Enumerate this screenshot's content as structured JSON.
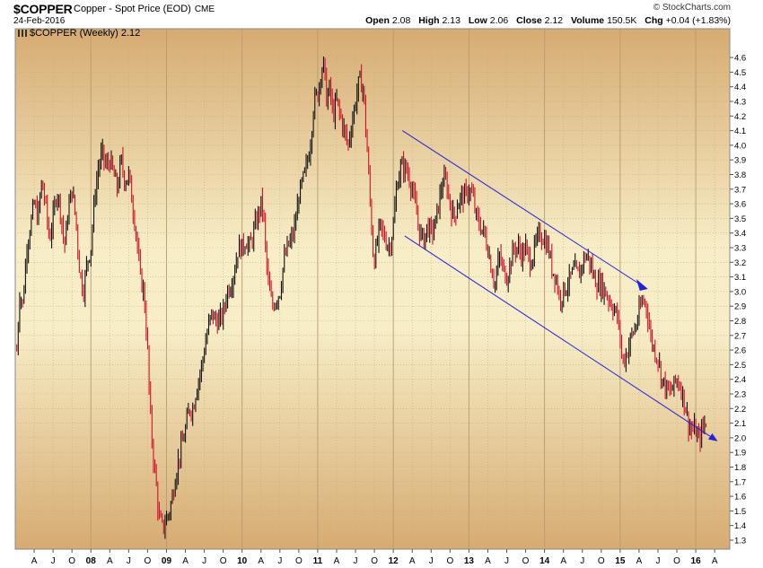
{
  "header": {
    "symbol": "$COPPER",
    "description": "Copper - Spot Price (EOD)",
    "exchange": "CME",
    "date": "24-Feb-2016",
    "brand": "© StockCharts.com",
    "quote": {
      "open_label": "Open",
      "open": "2.08",
      "high_label": "High",
      "high": "2.13",
      "low_label": "Low",
      "low": "2.06",
      "close_label": "Close",
      "close": "2.12",
      "volume_label": "Volume",
      "volume": "150.5K",
      "chg_label": "Chg",
      "chg": "+0.04 (+1.83%)"
    }
  },
  "legend": {
    "label": "$COPPER (Weekly) 2.12"
  },
  "chart_data": {
    "type": "line",
    "title": "$COPPER",
    "ylim": [
      1.2,
      4.7
    ],
    "y_ticks": [
      1.3,
      1.4,
      1.5,
      1.6,
      1.7,
      1.8,
      1.9,
      2.0,
      2.1,
      2.2,
      2.3,
      2.4,
      2.5,
      2.6,
      2.7,
      2.8,
      2.9,
      3.0,
      3.1,
      3.2,
      3.3,
      3.4,
      3.5,
      3.6,
      3.7,
      3.8,
      3.9,
      4.0,
      4.1,
      4.2,
      4.3,
      4.4,
      4.5,
      4.6
    ],
    "x_ticks": [
      {
        "t": 2007.25,
        "label": "A"
      },
      {
        "t": 2007.5,
        "label": "J"
      },
      {
        "t": 2007.75,
        "label": "O"
      },
      {
        "t": 2008.0,
        "label": "08",
        "major": true
      },
      {
        "t": 2008.25,
        "label": "A"
      },
      {
        "t": 2008.5,
        "label": "J"
      },
      {
        "t": 2008.75,
        "label": "O"
      },
      {
        "t": 2009.0,
        "label": "09",
        "major": true
      },
      {
        "t": 2009.25,
        "label": "A"
      },
      {
        "t": 2009.5,
        "label": "J"
      },
      {
        "t": 2009.75,
        "label": "O"
      },
      {
        "t": 2010.0,
        "label": "10",
        "major": true
      },
      {
        "t": 2010.25,
        "label": "A"
      },
      {
        "t": 2010.5,
        "label": "J"
      },
      {
        "t": 2010.75,
        "label": "O"
      },
      {
        "t": 2011.0,
        "label": "11",
        "major": true
      },
      {
        "t": 2011.25,
        "label": "A"
      },
      {
        "t": 2011.5,
        "label": "J"
      },
      {
        "t": 2011.75,
        "label": "O"
      },
      {
        "t": 2012.0,
        "label": "12",
        "major": true
      },
      {
        "t": 2012.25,
        "label": "A"
      },
      {
        "t": 2012.5,
        "label": "J"
      },
      {
        "t": 2012.75,
        "label": "O"
      },
      {
        "t": 2013.0,
        "label": "13",
        "major": true
      },
      {
        "t": 2013.25,
        "label": "A"
      },
      {
        "t": 2013.5,
        "label": "J"
      },
      {
        "t": 2013.75,
        "label": "O"
      },
      {
        "t": 2014.0,
        "label": "14",
        "major": true
      },
      {
        "t": 2014.25,
        "label": "A"
      },
      {
        "t": 2014.5,
        "label": "J"
      },
      {
        "t": 2014.75,
        "label": "O"
      },
      {
        "t": 2015.0,
        "label": "15",
        "major": true
      },
      {
        "t": 2015.25,
        "label": "A"
      },
      {
        "t": 2015.5,
        "label": "J"
      },
      {
        "t": 2015.75,
        "label": "O"
      },
      {
        "t": 2016.0,
        "label": "16",
        "major": true
      },
      {
        "t": 2016.25,
        "label": "A"
      }
    ],
    "series": [
      {
        "values": [
          [
            2007.02,
            2.6
          ],
          [
            2007.06,
            3.0
          ],
          [
            2007.1,
            2.9
          ],
          [
            2007.15,
            3.3
          ],
          [
            2007.2,
            3.45
          ],
          [
            2007.25,
            3.6
          ],
          [
            2007.3,
            3.5
          ],
          [
            2007.35,
            3.75
          ],
          [
            2007.4,
            3.6
          ],
          [
            2007.45,
            3.35
          ],
          [
            2007.5,
            3.5
          ],
          [
            2007.55,
            3.7
          ],
          [
            2007.6,
            3.55
          ],
          [
            2007.65,
            3.3
          ],
          [
            2007.7,
            3.55
          ],
          [
            2007.75,
            3.7
          ],
          [
            2007.8,
            3.5
          ],
          [
            2007.85,
            3.15
          ],
          [
            2007.9,
            3.0
          ],
          [
            2007.95,
            3.2
          ],
          [
            2008.0,
            3.3
          ],
          [
            2008.05,
            3.65
          ],
          [
            2008.1,
            3.85
          ],
          [
            2008.15,
            3.95
          ],
          [
            2008.2,
            3.85
          ],
          [
            2008.25,
            3.9
          ],
          [
            2008.3,
            3.8
          ],
          [
            2008.35,
            3.7
          ],
          [
            2008.4,
            3.9
          ],
          [
            2008.45,
            3.75
          ],
          [
            2008.5,
            3.8
          ],
          [
            2008.55,
            3.6
          ],
          [
            2008.6,
            3.4
          ],
          [
            2008.65,
            3.1
          ],
          [
            2008.7,
            3.0
          ],
          [
            2008.75,
            2.6
          ],
          [
            2008.78,
            2.2
          ],
          [
            2008.82,
            1.9
          ],
          [
            2008.86,
            1.7
          ],
          [
            2008.9,
            1.45
          ],
          [
            2008.95,
            1.38
          ],
          [
            2009.0,
            1.45
          ],
          [
            2009.04,
            1.5
          ],
          [
            2009.08,
            1.6
          ],
          [
            2009.12,
            1.75
          ],
          [
            2009.18,
            1.9
          ],
          [
            2009.25,
            2.05
          ],
          [
            2009.3,
            2.2
          ],
          [
            2009.35,
            2.2
          ],
          [
            2009.4,
            2.35
          ],
          [
            2009.45,
            2.45
          ],
          [
            2009.5,
            2.6
          ],
          [
            2009.55,
            2.75
          ],
          [
            2009.6,
            2.85
          ],
          [
            2009.65,
            2.8
          ],
          [
            2009.7,
            2.8
          ],
          [
            2009.75,
            2.85
          ],
          [
            2009.8,
            3.0
          ],
          [
            2009.85,
            3.05
          ],
          [
            2009.9,
            3.15
          ],
          [
            2009.95,
            3.3
          ],
          [
            2010.0,
            3.3
          ],
          [
            2010.05,
            3.35
          ],
          [
            2010.1,
            3.3
          ],
          [
            2010.15,
            3.4
          ],
          [
            2010.2,
            3.5
          ],
          [
            2010.25,
            3.6
          ],
          [
            2010.28,
            3.55
          ],
          [
            2010.32,
            3.2
          ],
          [
            2010.36,
            3.0
          ],
          [
            2010.4,
            2.9
          ],
          [
            2010.45,
            2.95
          ],
          [
            2010.5,
            3.0
          ],
          [
            2010.55,
            3.2
          ],
          [
            2010.6,
            3.3
          ],
          [
            2010.65,
            3.35
          ],
          [
            2010.7,
            3.45
          ],
          [
            2010.75,
            3.65
          ],
          [
            2010.8,
            3.75
          ],
          [
            2010.85,
            3.85
          ],
          [
            2010.9,
            4.0
          ],
          [
            2010.95,
            4.3
          ],
          [
            2011.0,
            4.35
          ],
          [
            2011.04,
            4.5
          ],
          [
            2011.08,
            4.55
          ],
          [
            2011.12,
            4.3
          ],
          [
            2011.16,
            4.4
          ],
          [
            2011.2,
            4.2
          ],
          [
            2011.25,
            4.3
          ],
          [
            2011.3,
            4.2
          ],
          [
            2011.35,
            4.1
          ],
          [
            2011.4,
            4.0
          ],
          [
            2011.45,
            4.15
          ],
          [
            2011.5,
            4.3
          ],
          [
            2011.55,
            4.45
          ],
          [
            2011.6,
            4.4
          ],
          [
            2011.65,
            4.0
          ],
          [
            2011.7,
            3.55
          ],
          [
            2011.74,
            3.2
          ],
          [
            2011.78,
            3.3
          ],
          [
            2011.82,
            3.45
          ],
          [
            2011.86,
            3.4
          ],
          [
            2011.9,
            3.35
          ],
          [
            2011.95,
            3.3
          ],
          [
            2012.0,
            3.45
          ],
          [
            2012.05,
            3.75
          ],
          [
            2012.1,
            3.85
          ],
          [
            2012.15,
            3.85
          ],
          [
            2012.2,
            3.8
          ],
          [
            2012.25,
            3.7
          ],
          [
            2012.3,
            3.55
          ],
          [
            2012.35,
            3.4
          ],
          [
            2012.4,
            3.35
          ],
          [
            2012.45,
            3.45
          ],
          [
            2012.5,
            3.4
          ],
          [
            2012.55,
            3.45
          ],
          [
            2012.6,
            3.6
          ],
          [
            2012.65,
            3.75
          ],
          [
            2012.7,
            3.75
          ],
          [
            2012.75,
            3.6
          ],
          [
            2012.8,
            3.5
          ],
          [
            2012.85,
            3.6
          ],
          [
            2012.9,
            3.65
          ],
          [
            2012.95,
            3.65
          ],
          [
            2013.0,
            3.7
          ],
          [
            2013.05,
            3.65
          ],
          [
            2013.1,
            3.5
          ],
          [
            2013.15,
            3.45
          ],
          [
            2013.2,
            3.4
          ],
          [
            2013.25,
            3.3
          ],
          [
            2013.3,
            3.15
          ],
          [
            2013.35,
            3.05
          ],
          [
            2013.4,
            3.25
          ],
          [
            2013.45,
            3.15
          ],
          [
            2013.5,
            3.1
          ],
          [
            2013.55,
            3.2
          ],
          [
            2013.6,
            3.3
          ],
          [
            2013.65,
            3.3
          ],
          [
            2013.7,
            3.25
          ],
          [
            2013.75,
            3.3
          ],
          [
            2013.8,
            3.2
          ],
          [
            2013.85,
            3.25
          ],
          [
            2013.9,
            3.35
          ],
          [
            2013.95,
            3.4
          ],
          [
            2014.0,
            3.35
          ],
          [
            2014.05,
            3.3
          ],
          [
            2014.1,
            3.15
          ],
          [
            2014.15,
            3.1
          ],
          [
            2014.2,
            2.95
          ],
          [
            2014.25,
            3.0
          ],
          [
            2014.3,
            3.05
          ],
          [
            2014.35,
            3.1
          ],
          [
            2014.4,
            3.15
          ],
          [
            2014.45,
            3.1
          ],
          [
            2014.5,
            3.2
          ],
          [
            2014.55,
            3.25
          ],
          [
            2014.6,
            3.2
          ],
          [
            2014.65,
            3.1
          ],
          [
            2014.7,
            3.05
          ],
          [
            2014.75,
            3.05
          ],
          [
            2014.8,
            3.0
          ],
          [
            2014.85,
            2.95
          ],
          [
            2014.9,
            2.9
          ],
          [
            2014.95,
            2.85
          ],
          [
            2015.0,
            2.7
          ],
          [
            2015.03,
            2.5
          ],
          [
            2015.06,
            2.55
          ],
          [
            2015.1,
            2.6
          ],
          [
            2015.15,
            2.7
          ],
          [
            2015.2,
            2.75
          ],
          [
            2015.25,
            2.85
          ],
          [
            2015.3,
            2.95
          ],
          [
            2015.35,
            2.9
          ],
          [
            2015.4,
            2.7
          ],
          [
            2015.45,
            2.6
          ],
          [
            2015.5,
            2.55
          ],
          [
            2015.55,
            2.4
          ],
          [
            2015.6,
            2.35
          ],
          [
            2015.65,
            2.3
          ],
          [
            2015.7,
            2.35
          ],
          [
            2015.75,
            2.4
          ],
          [
            2015.8,
            2.35
          ],
          [
            2015.85,
            2.25
          ],
          [
            2015.9,
            2.1
          ],
          [
            2015.95,
            2.05
          ],
          [
            2016.0,
            2.05
          ],
          [
            2016.04,
            1.98
          ],
          [
            2016.08,
            2.05
          ],
          [
            2016.12,
            2.1
          ],
          [
            2016.15,
            2.12
          ]
        ]
      }
    ],
    "trend_lines": [
      {
        "from": [
          2012.12,
          4.1
        ],
        "to": [
          2015.32,
          3.03
        ],
        "arrow": false
      },
      {
        "from": [
          2012.15,
          3.38
        ],
        "to": [
          2016.28,
          1.98
        ],
        "arrow": true
      }
    ],
    "colors": {
      "up": "#111111",
      "down": "#d0102a",
      "trend": "#2222dd",
      "bg_top": "#d8b07a",
      "bg_mid": "#f6ecc4"
    }
  }
}
